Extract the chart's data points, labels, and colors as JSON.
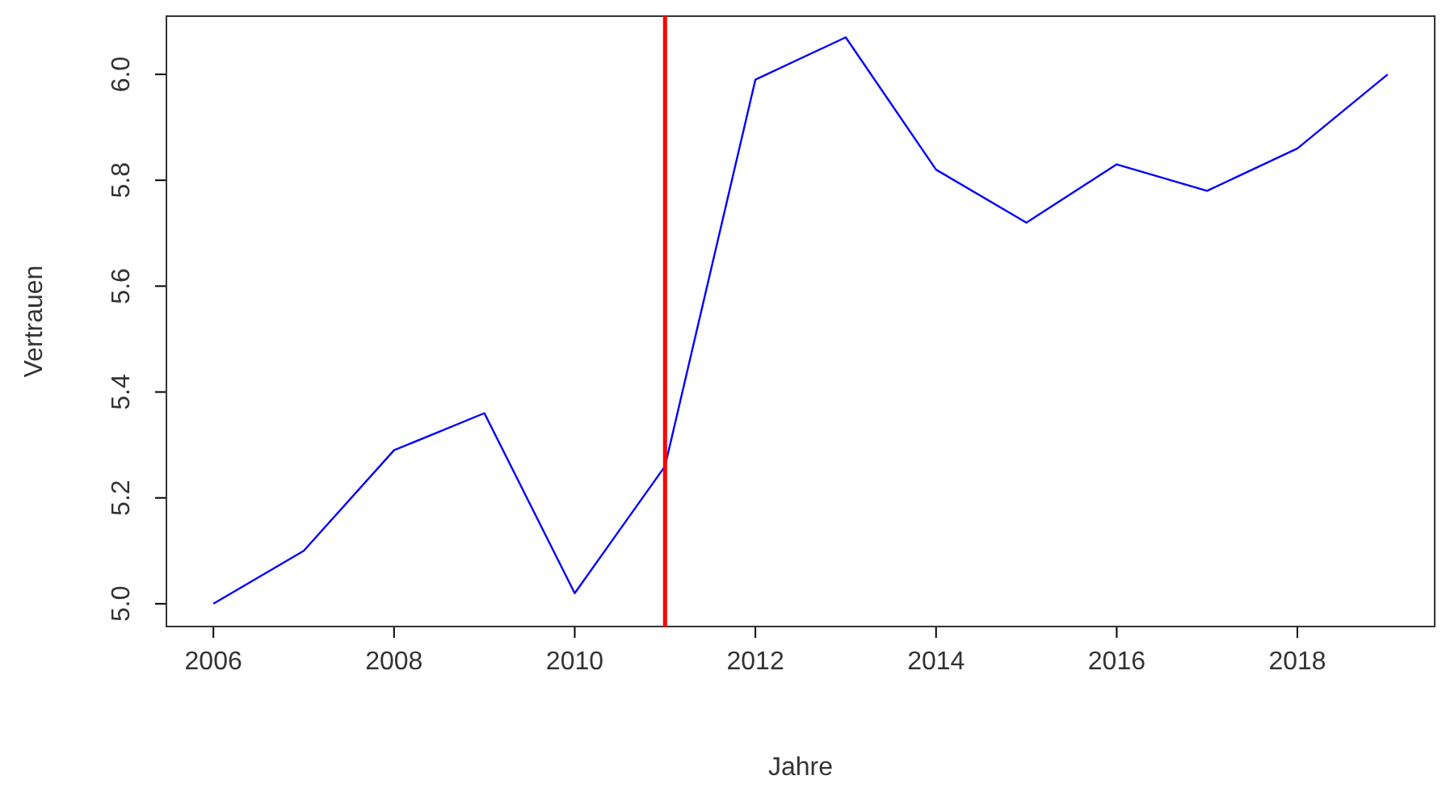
{
  "chart_data": {
    "type": "line",
    "xlabel": "Jahre",
    "ylabel": "Vertrauen",
    "x": [
      2006,
      2007,
      2008,
      2009,
      2010,
      2011,
      2012,
      2013,
      2014,
      2015,
      2016,
      2017,
      2018,
      2019
    ],
    "series": [
      {
        "color": "#0000ff",
        "values": [
          5.0,
          5.1,
          5.29,
          5.36,
          5.02,
          5.26,
          5.99,
          6.07,
          5.82,
          5.72,
          5.83,
          5.78,
          5.86,
          6.0
        ]
      }
    ],
    "xlim": [
      2005.48,
      2019.52
    ],
    "xticks": [
      2006,
      2008,
      2010,
      2012,
      2014,
      2016,
      2018
    ],
    "ylim": [
      4.957,
      6.11
    ],
    "yticks": [
      {
        "value": 5.0,
        "label": "5.0"
      },
      {
        "value": 5.2,
        "label": "5.2"
      },
      {
        "value": 5.4,
        "label": "5.4"
      },
      {
        "value": 5.6,
        "label": "5.6"
      },
      {
        "value": 5.8,
        "label": "5.8"
      },
      {
        "value": 6.0,
        "label": "6.0"
      }
    ],
    "ref_lines": [
      {
        "axis": "x",
        "value": 2011,
        "color": "#ff0000"
      }
    ],
    "grid": false
  }
}
